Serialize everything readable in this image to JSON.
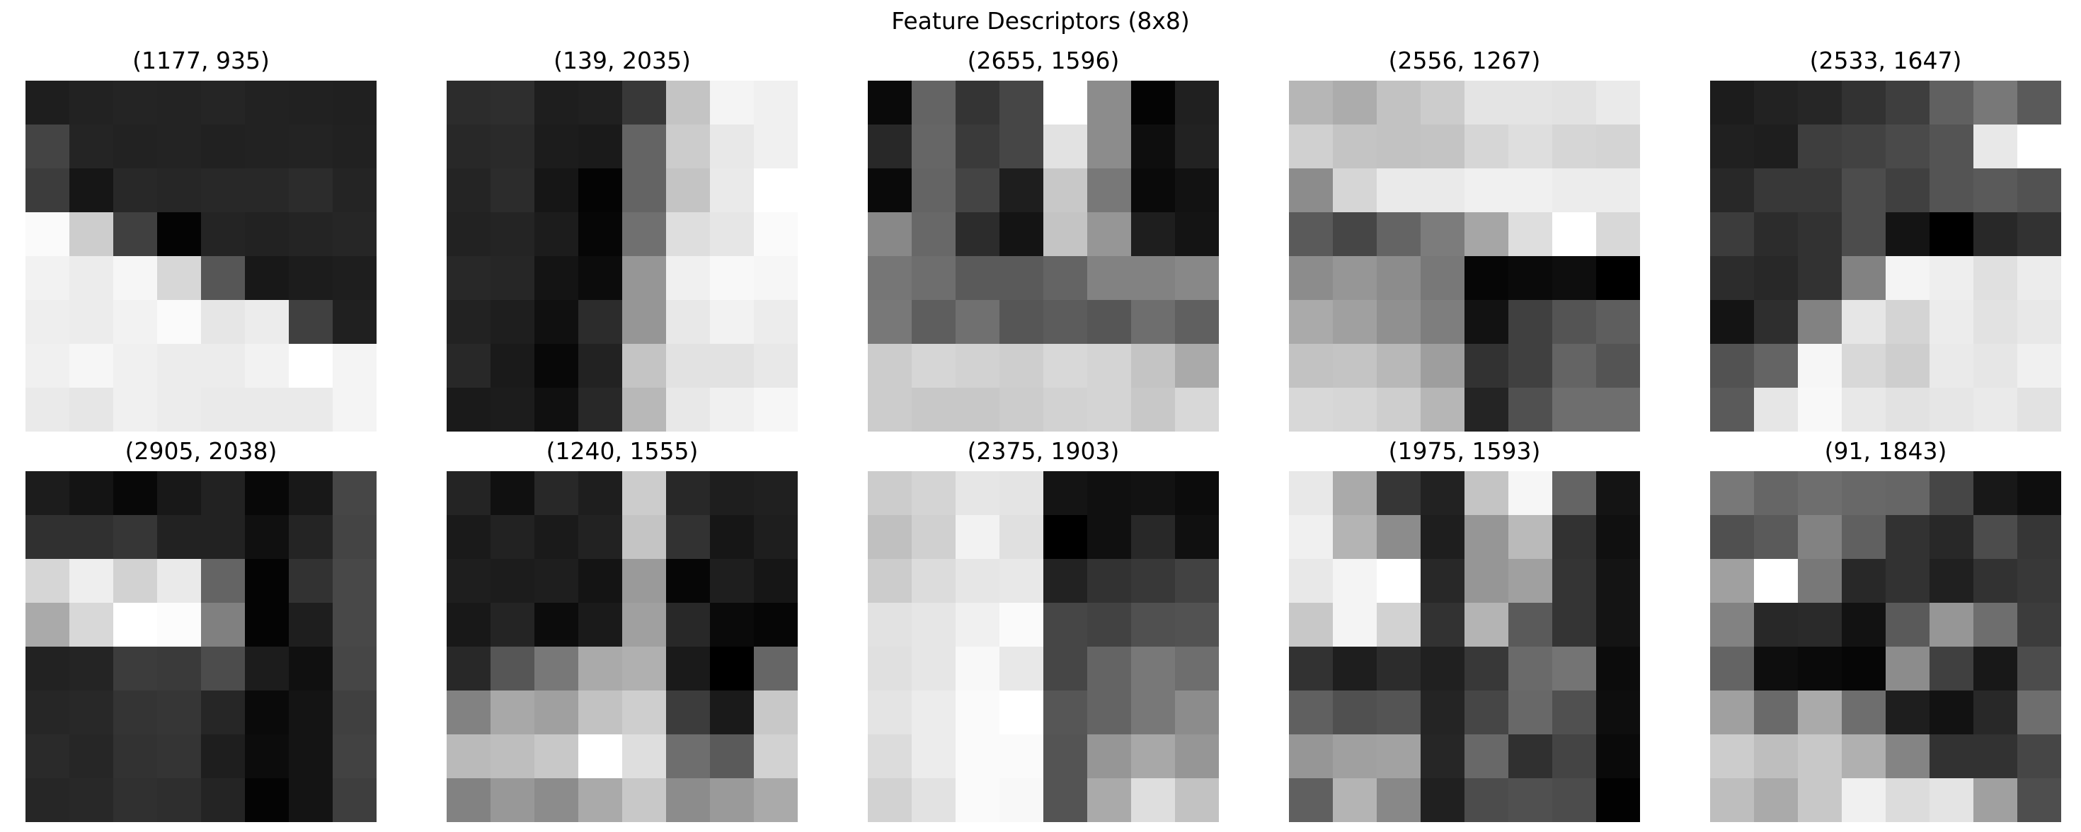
{
  "title": "Feature Descriptors (8x8)",
  "chart_data": {
    "type": "heatmap",
    "title": "Feature Descriptors (8x8)",
    "colormap": "gray",
    "value_range": [
      0,
      255
    ],
    "panels": [
      {
        "label": "(1177, 935)",
        "grid": [
          [
            30,
            34,
            36,
            35,
            37,
            34,
            33,
            32
          ],
          [
            68,
            36,
            34,
            35,
            33,
            34,
            35,
            33
          ],
          [
            60,
            22,
            40,
            38,
            40,
            40,
            44,
            36
          ],
          [
            250,
            205,
            64,
            4,
            36,
            34,
            36,
            38
          ],
          [
            242,
            236,
            246,
            215,
            86,
            24,
            28,
            30
          ],
          [
            238,
            236,
            242,
            250,
            230,
            236,
            64,
            32
          ],
          [
            240,
            246,
            240,
            236,
            236,
            242,
            255,
            244
          ],
          [
            234,
            230,
            240,
            236,
            234,
            234,
            234,
            244
          ]
        ]
      },
      {
        "label": "(139, 2035)",
        "grid": [
          [
            44,
            46,
            30,
            32,
            56,
            196,
            244,
            240
          ],
          [
            40,
            42,
            28,
            26,
            100,
            204,
            232,
            240
          ],
          [
            36,
            44,
            22,
            4,
            100,
            196,
            234,
            255
          ],
          [
            34,
            36,
            28,
            6,
            112,
            222,
            230,
            250
          ],
          [
            40,
            38,
            20,
            12,
            150,
            240,
            248,
            246
          ],
          [
            34,
            30,
            16,
            44,
            150,
            232,
            242,
            236
          ],
          [
            40,
            26,
            8,
            34,
            196,
            226,
            226,
            232
          ],
          [
            26,
            28,
            16,
            40,
            184,
            232,
            240,
            246
          ]
        ]
      },
      {
        "label": "(2655, 1596)",
        "grid": [
          [
            10,
            100,
            52,
            70,
            255,
            140,
            4,
            32
          ],
          [
            40,
            102,
            58,
            70,
            226,
            140,
            14,
            34
          ],
          [
            10,
            100,
            68,
            30,
            200,
            120,
            10,
            18
          ],
          [
            136,
            104,
            44,
            20,
            196,
            150,
            30,
            20
          ],
          [
            118,
            110,
            90,
            90,
            100,
            130,
            130,
            136
          ],
          [
            120,
            94,
            112,
            86,
            92,
            86,
            110,
            96
          ],
          [
            204,
            214,
            210,
            206,
            216,
            212,
            196,
            170
          ],
          [
            204,
            200,
            200,
            204,
            210,
            212,
            200,
            216
          ]
        ]
      },
      {
        "label": "(2556, 1267)",
        "grid": [
          [
            182,
            172,
            194,
            204,
            228,
            228,
            226,
            234
          ],
          [
            208,
            196,
            194,
            196,
            214,
            222,
            214,
            212
          ],
          [
            140,
            214,
            234,
            234,
            240,
            240,
            236,
            236
          ],
          [
            90,
            70,
            100,
            124,
            166,
            222,
            255,
            216
          ],
          [
            140,
            150,
            140,
            120,
            6,
            10,
            14,
            0
          ],
          [
            170,
            160,
            144,
            126,
            18,
            64,
            84,
            94
          ],
          [
            194,
            196,
            184,
            158,
            50,
            64,
            100,
            84
          ],
          [
            216,
            214,
            206,
            182,
            36,
            80,
            110,
            110
          ]
        ]
      },
      {
        "label": "(2533, 1647)",
        "grid": [
          [
            28,
            34,
            38,
            50,
            62,
            96,
            120,
            90
          ],
          [
            32,
            30,
            62,
            66,
            74,
            84,
            232,
            255
          ],
          [
            40,
            56,
            56,
            76,
            64,
            84,
            90,
            82
          ],
          [
            60,
            44,
            50,
            76,
            20,
            0,
            40,
            50
          ],
          [
            44,
            40,
            50,
            130,
            244,
            238,
            224,
            236
          ],
          [
            20,
            46,
            130,
            230,
            212,
            236,
            226,
            232
          ],
          [
            82,
            100,
            246,
            216,
            206,
            234,
            230,
            240
          ],
          [
            90,
            230,
            248,
            232,
            226,
            230,
            234,
            226
          ]
        ]
      },
      {
        "label": "(2905, 2038)",
        "grid": [
          [
            28,
            20,
            8,
            24,
            34,
            8,
            24,
            70
          ],
          [
            48,
            48,
            54,
            34,
            34,
            16,
            36,
            68
          ],
          [
            214,
            238,
            210,
            234,
            100,
            4,
            50,
            72
          ],
          [
            170,
            216,
            255,
            252,
            128,
            4,
            30,
            72
          ],
          [
            34,
            36,
            60,
            58,
            76,
            28,
            16,
            70
          ],
          [
            38,
            40,
            52,
            54,
            38,
            10,
            20,
            64
          ],
          [
            42,
            38,
            50,
            52,
            30,
            12,
            20,
            66
          ],
          [
            38,
            40,
            48,
            46,
            36,
            4,
            20,
            62
          ]
        ]
      },
      {
        "label": "(1240, 1555)",
        "grid": [
          [
            36,
            16,
            40,
            30,
            204,
            40,
            30,
            32
          ],
          [
            26,
            34,
            26,
            34,
            196,
            50,
            22,
            30
          ],
          [
            30,
            28,
            30,
            20,
            154,
            6,
            30,
            22
          ],
          [
            24,
            36,
            12,
            26,
            160,
            40,
            10,
            6
          ],
          [
            40,
            86,
            120,
            170,
            176,
            26,
            0,
            102
          ],
          [
            130,
            168,
            160,
            194,
            206,
            60,
            26,
            200
          ],
          [
            186,
            190,
            200,
            255,
            222,
            110,
            90,
            210
          ],
          [
            130,
            152,
            140,
            170,
            200,
            140,
            154,
            170
          ]
        ]
      },
      {
        "label": "(2375, 1903)",
        "grid": [
          [
            204,
            212,
            230,
            228,
            20,
            16,
            18,
            12
          ],
          [
            192,
            208,
            242,
            224,
            0,
            16,
            40,
            16
          ],
          [
            204,
            220,
            230,
            232,
            34,
            50,
            56,
            66
          ],
          [
            226,
            230,
            240,
            250,
            70,
            66,
            80,
            82
          ],
          [
            224,
            230,
            248,
            232,
            70,
            100,
            120,
            110
          ],
          [
            228,
            236,
            250,
            255,
            86,
            100,
            120,
            140
          ],
          [
            220,
            236,
            250,
            250,
            84,
            150,
            168,
            150
          ],
          [
            210,
            226,
            250,
            248,
            84,
            170,
            222,
            194
          ]
        ]
      },
      {
        "label": "(1975, 1593)",
        "grid": [
          [
            232,
            170,
            54,
            34,
            196,
            246,
            100,
            20
          ],
          [
            240,
            180,
            140,
            30,
            150,
            186,
            50,
            16
          ],
          [
            232,
            244,
            255,
            40,
            150,
            160,
            52,
            20
          ],
          [
            200,
            244,
            210,
            50,
            180,
            90,
            52,
            20
          ],
          [
            50,
            30,
            44,
            32,
            56,
            106,
            116,
            12
          ],
          [
            96,
            80,
            84,
            36,
            70,
            104,
            80,
            14
          ],
          [
            150,
            160,
            162,
            38,
            104,
            48,
            68,
            10
          ],
          [
            96,
            180,
            136,
            32,
            76,
            80,
            76,
            2
          ]
        ]
      },
      {
        "label": "(91, 1843)",
        "grid": [
          [
            120,
            102,
            110,
            104,
            102,
            70,
            24,
            14
          ],
          [
            80,
            90,
            130,
            96,
            50,
            40,
            76,
            54
          ],
          [
            160,
            255,
            120,
            40,
            50,
            32,
            50,
            56
          ],
          [
            130,
            40,
            42,
            18,
            90,
            150,
            110,
            60
          ],
          [
            100,
            14,
            10,
            6,
            140,
            64,
            24,
            76
          ],
          [
            160,
            106,
            170,
            110,
            30,
            18,
            40,
            110
          ],
          [
            204,
            190,
            200,
            176,
            132,
            50,
            50,
            70
          ],
          [
            190,
            170,
            200,
            240,
            220,
            228,
            160,
            78
          ]
        ]
      }
    ]
  }
}
